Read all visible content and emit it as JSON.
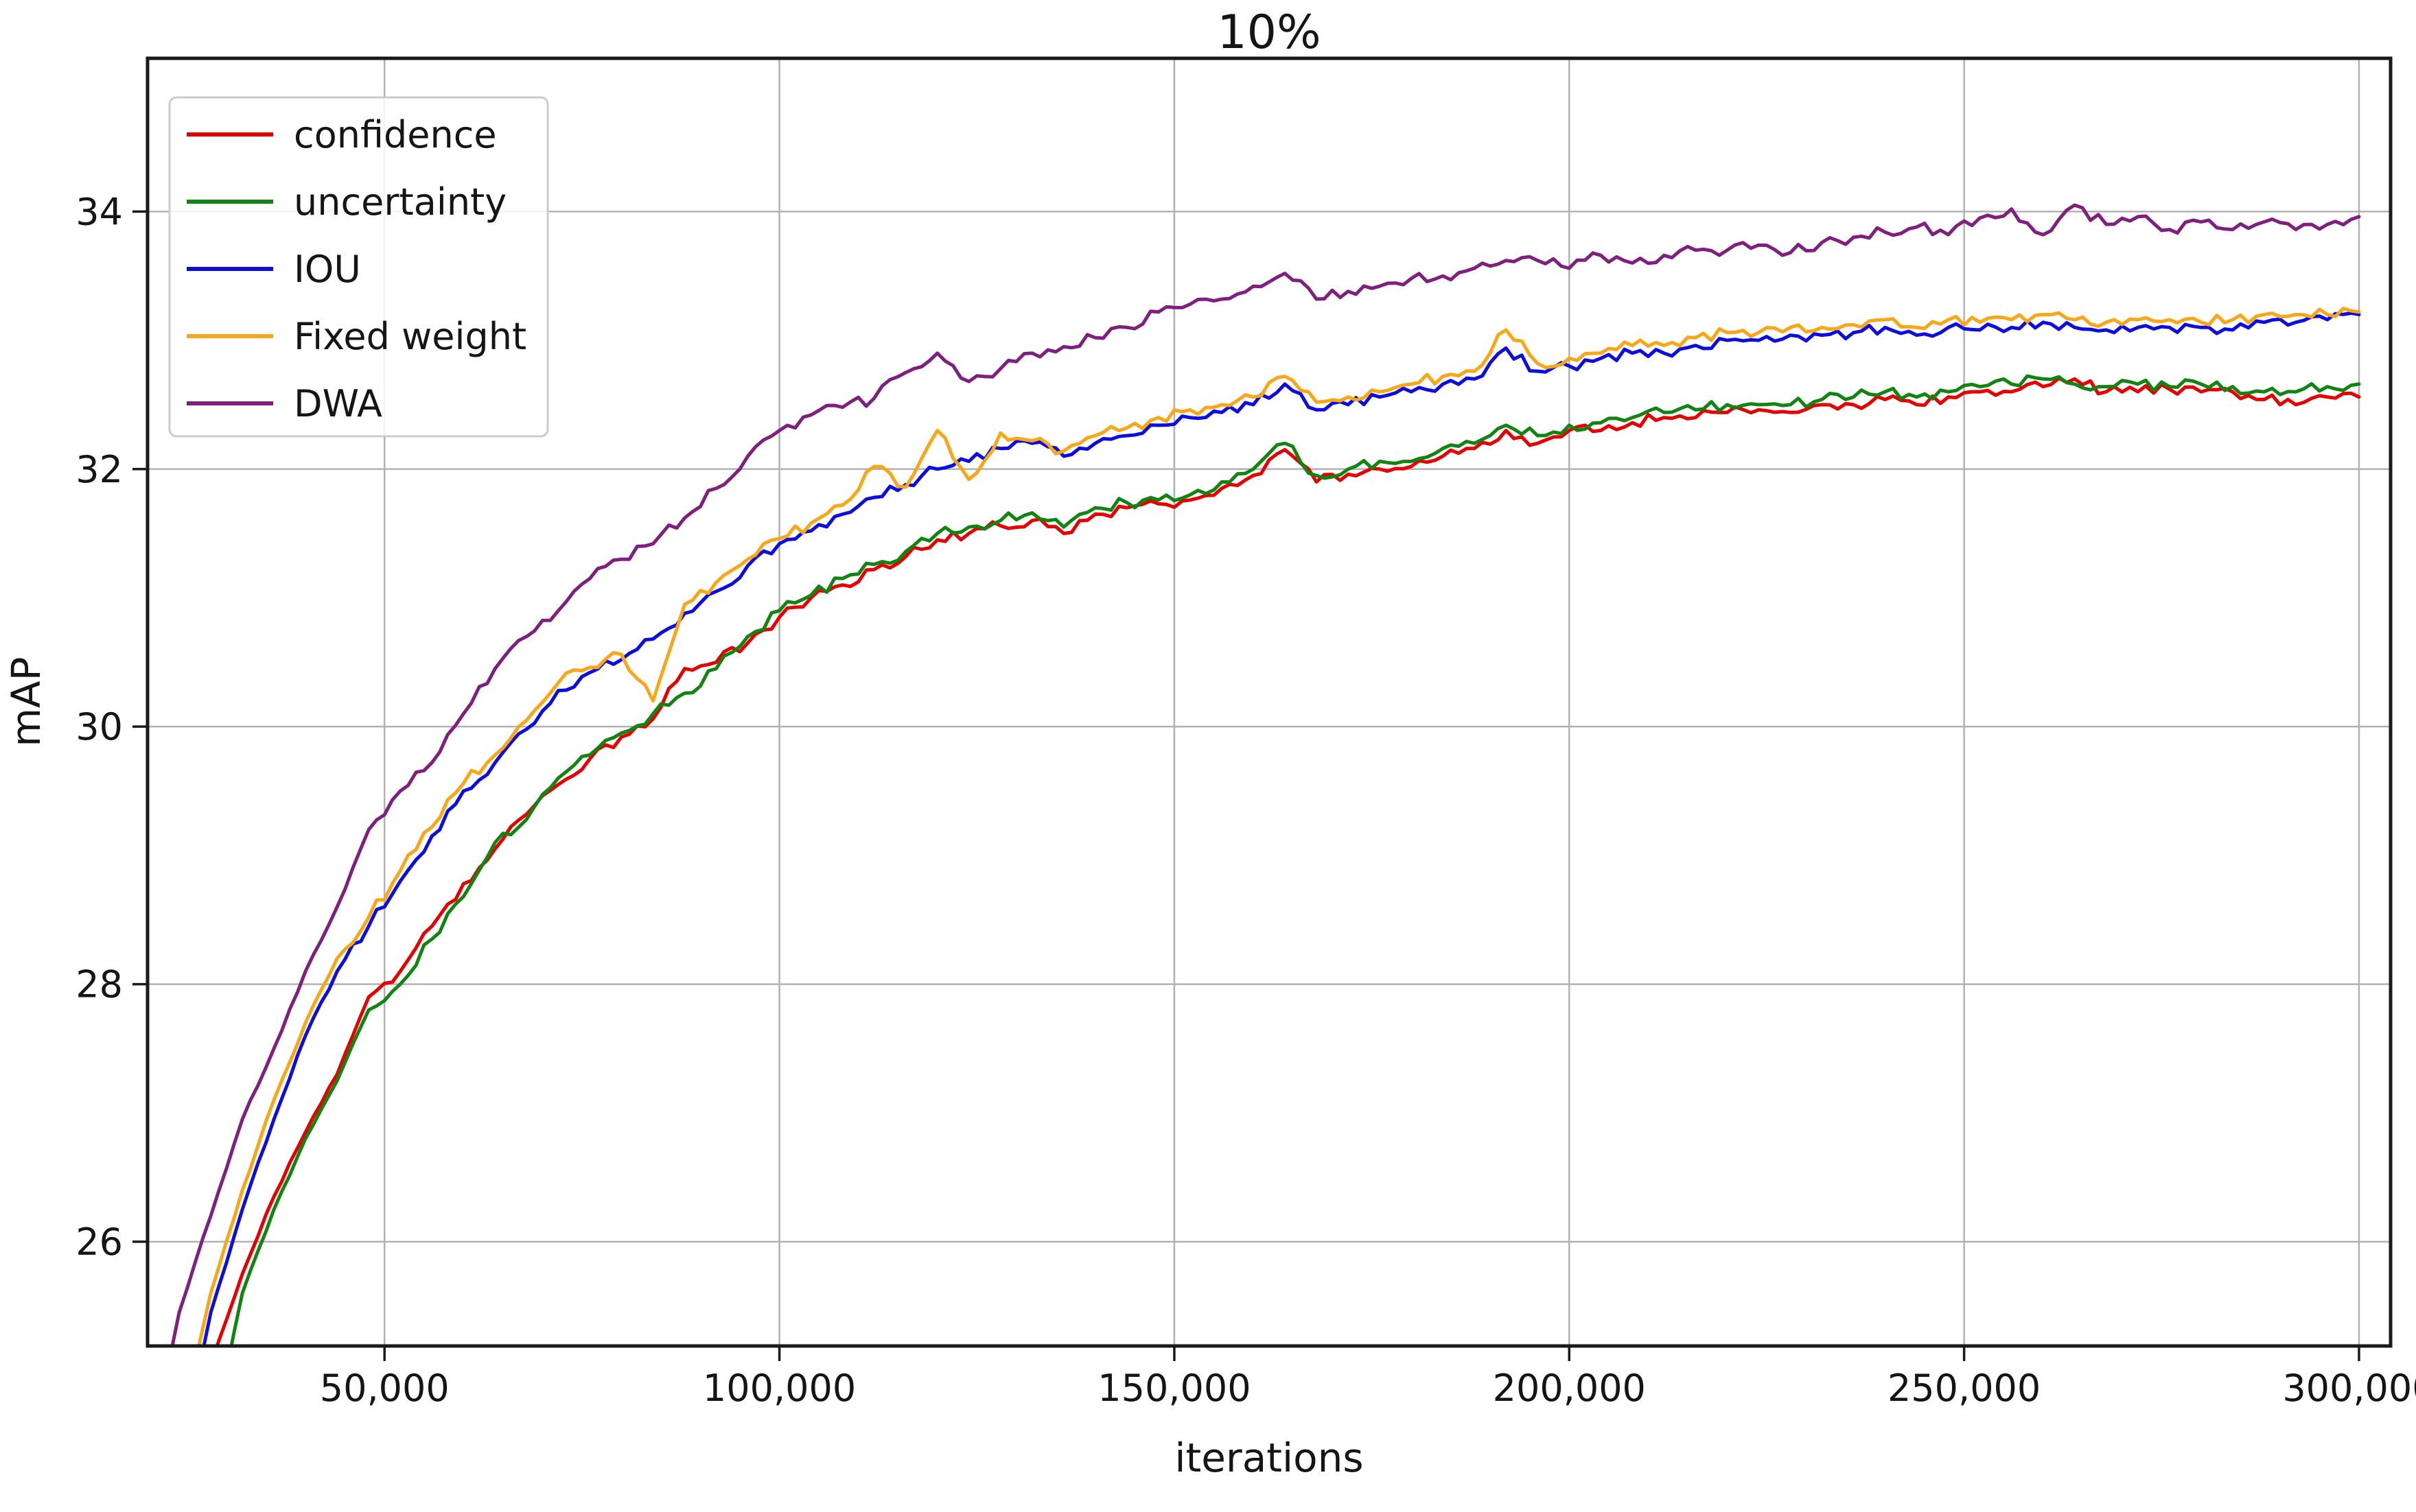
{
  "chart_data": {
    "type": "line",
    "title": "10%",
    "xlabel": "iterations",
    "ylabel": "mAP",
    "xlim": [
      20000,
      304000
    ],
    "ylim": [
      25.19,
      35.19
    ],
    "grid": true,
    "legend_position": "upper left",
    "x_ticks": [
      {
        "value": 50000,
        "label": "50,000"
      },
      {
        "value": 100000,
        "label": "100,000"
      },
      {
        "value": 150000,
        "label": "150,000"
      },
      {
        "value": 200000,
        "label": "200,000"
      },
      {
        "value": 250000,
        "label": "250,000"
      },
      {
        "value": 300000,
        "label": "300,000"
      }
    ],
    "y_ticks": [
      {
        "value": 26,
        "label": "26"
      },
      {
        "value": 28,
        "label": "28"
      },
      {
        "value": 30,
        "label": "30"
      },
      {
        "value": 32,
        "label": "32"
      },
      {
        "value": 34,
        "label": "34"
      }
    ],
    "x": [
      20000,
      24000,
      28000,
      32000,
      36000,
      40000,
      44000,
      48000,
      52000,
      56000,
      60000,
      64000,
      68000,
      72000,
      76000,
      80000,
      84000,
      88000,
      92000,
      96000,
      100000,
      104000,
      108000,
      112000,
      116000,
      120000,
      124000,
      128000,
      132000,
      136000,
      140000,
      144000,
      148000,
      152000,
      156000,
      160000,
      164000,
      168000,
      172000,
      176000,
      180000,
      184000,
      188000,
      192000,
      196000,
      200000,
      204000,
      208000,
      212000,
      216000,
      220000,
      224000,
      228000,
      232000,
      236000,
      240000,
      244000,
      248000,
      252000,
      256000,
      260000,
      264000,
      268000,
      272000,
      276000,
      280000,
      284000,
      288000,
      292000,
      296000,
      300000
    ],
    "series": [
      {
        "name": "confidence",
        "color": "#e60000",
        "values": [
          null,
          24.2,
          25.05,
          25.75,
          26.35,
          26.85,
          27.3,
          27.9,
          28.1,
          28.45,
          28.78,
          29.05,
          29.32,
          29.55,
          29.75,
          29.92,
          30.06,
          30.45,
          30.5,
          30.65,
          30.85,
          31.0,
          31.1,
          31.22,
          31.32,
          31.45,
          31.5,
          31.56,
          31.6,
          31.5,
          31.65,
          31.7,
          31.73,
          31.76,
          31.85,
          31.95,
          32.15,
          31.9,
          31.96,
          32.0,
          32.02,
          32.1,
          32.16,
          32.3,
          32.2,
          32.3,
          32.3,
          32.36,
          32.4,
          32.4,
          32.44,
          32.46,
          32.44,
          32.5,
          32.5,
          32.54,
          32.5,
          32.56,
          32.6,
          32.6,
          32.64,
          32.7,
          32.6,
          32.6,
          32.62,
          32.6,
          32.6,
          32.54,
          32.5,
          32.56,
          32.56
        ]
      },
      {
        "name": "uncertainty",
        "color": "#128412",
        "values": [
          null,
          null,
          24.4,
          25.6,
          26.25,
          26.8,
          27.25,
          27.8,
          28.0,
          28.35,
          28.68,
          29.1,
          29.28,
          29.6,
          29.78,
          29.95,
          30.1,
          30.26,
          30.45,
          30.7,
          30.9,
          31.02,
          31.15,
          31.26,
          31.36,
          31.5,
          31.55,
          31.6,
          31.66,
          31.55,
          31.7,
          31.74,
          31.76,
          31.8,
          31.9,
          32.0,
          32.2,
          31.95,
          32.0,
          32.06,
          32.06,
          32.16,
          32.2,
          32.34,
          32.26,
          32.34,
          32.36,
          32.4,
          32.44,
          32.46,
          32.5,
          32.5,
          32.5,
          32.54,
          32.56,
          32.6,
          32.56,
          32.6,
          32.64,
          32.66,
          32.7,
          32.66,
          32.64,
          32.66,
          32.64,
          32.66,
          32.64,
          32.6,
          32.6,
          32.64,
          32.66
        ]
      },
      {
        "name": "IOU",
        "color": "#0d0de0",
        "values": [
          null,
          24.3,
          25.45,
          26.25,
          26.95,
          27.6,
          28.1,
          28.45,
          28.8,
          29.15,
          29.5,
          29.72,
          29.98,
          30.28,
          30.42,
          30.52,
          30.68,
          30.88,
          31.05,
          31.25,
          31.42,
          31.52,
          31.65,
          31.78,
          31.88,
          32.0,
          32.06,
          32.16,
          32.2,
          32.1,
          32.2,
          32.26,
          32.34,
          32.4,
          32.44,
          32.5,
          32.66,
          32.46,
          32.5,
          32.56,
          32.6,
          32.66,
          32.7,
          32.94,
          32.76,
          32.8,
          32.86,
          32.9,
          32.9,
          32.96,
          33.0,
          33.0,
          33.04,
          33.04,
          33.06,
          33.1,
          33.04,
          33.1,
          33.08,
          33.1,
          33.14,
          33.1,
          33.08,
          33.1,
          33.1,
          33.1,
          33.08,
          33.14,
          33.14,
          33.16,
          33.2
        ]
      },
      {
        "name": "Fixed weight",
        "color": "#f7a717",
        "values": [
          null,
          24.5,
          25.6,
          26.4,
          27.1,
          27.7,
          28.2,
          28.52,
          28.88,
          29.22,
          29.56,
          29.78,
          30.05,
          30.34,
          30.46,
          30.56,
          30.2,
          30.95,
          31.12,
          31.3,
          31.46,
          31.58,
          31.72,
          32.02,
          31.86,
          32.3,
          31.92,
          32.28,
          32.22,
          32.14,
          32.26,
          32.32,
          32.4,
          32.46,
          32.5,
          32.56,
          32.72,
          32.52,
          32.56,
          32.6,
          32.66,
          32.72,
          32.76,
          33.08,
          32.82,
          32.86,
          32.9,
          32.96,
          32.96,
          33.02,
          33.06,
          33.06,
          33.1,
          33.1,
          33.12,
          33.16,
          33.1,
          33.16,
          33.14,
          33.16,
          33.2,
          33.16,
          33.14,
          33.16,
          33.16,
          33.14,
          33.16,
          33.2,
          33.2,
          33.2,
          33.22
        ]
      },
      {
        "name": "DWA",
        "color": "#7f1f7f",
        "values": [
          24.2,
          25.45,
          26.2,
          26.95,
          27.5,
          28.1,
          28.6,
          29.2,
          29.5,
          29.72,
          30.1,
          30.45,
          30.7,
          30.9,
          31.15,
          31.3,
          31.42,
          31.62,
          31.85,
          32.1,
          32.3,
          32.42,
          32.48,
          32.55,
          32.75,
          32.9,
          32.68,
          32.78,
          32.9,
          32.95,
          33.02,
          33.1,
          33.22,
          33.28,
          33.32,
          33.42,
          33.52,
          33.32,
          33.38,
          33.42,
          33.48,
          33.5,
          33.56,
          33.62,
          33.62,
          33.56,
          33.66,
          33.6,
          33.66,
          33.7,
          33.7,
          33.74,
          33.68,
          33.76,
          33.8,
          33.84,
          33.88,
          33.82,
          33.95,
          34.02,
          33.82,
          34.05,
          33.9,
          33.96,
          33.86,
          33.92,
          33.86,
          33.92,
          33.86,
          33.9,
          33.96
        ]
      }
    ],
    "style": {
      "grid_color": "#b2b2b2",
      "spine_color": "#1a1a1a",
      "tick_color": "#1a1a1a",
      "legend_border_color": "#cccccc",
      "background_color": "#ffffff",
      "noise_amplitude": 0.045
    }
  }
}
